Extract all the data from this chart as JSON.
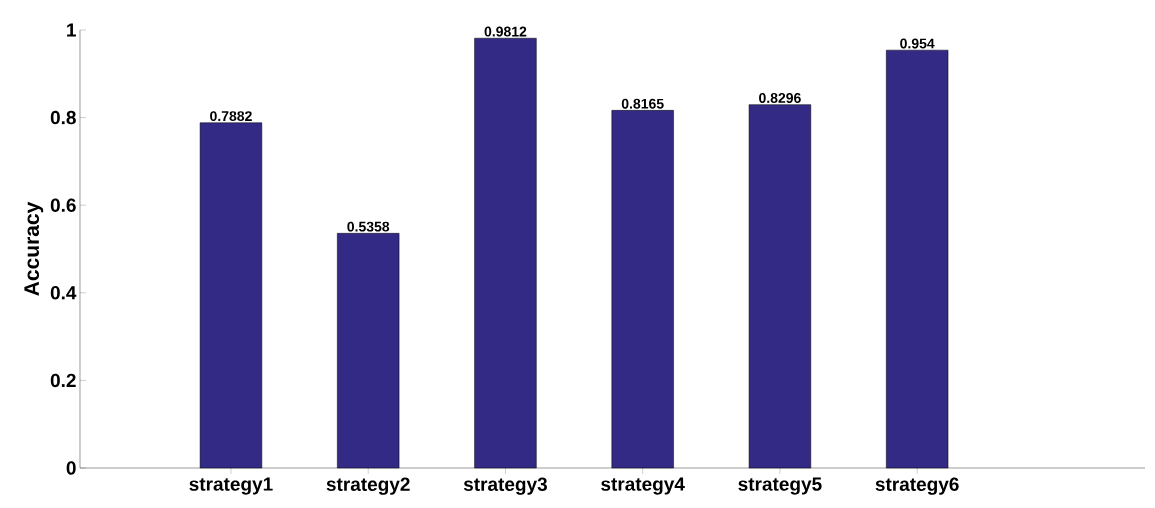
{
  "chart_data": {
    "type": "bar",
    "ylabel": "Accuracy",
    "categories": [
      "strategy1",
      "strategy2",
      "strategy3",
      "strategy4",
      "strategy5",
      "strategy6"
    ],
    "values": [
      0.7882,
      0.5358,
      0.9812,
      0.8165,
      0.8296,
      0.954
    ],
    "color": "#332a85",
    "ylim": [
      0,
      1
    ],
    "yticks": [
      0,
      0.2,
      0.4,
      0.6,
      0.8,
      1
    ],
    "grid": false,
    "data_labels": true
  }
}
